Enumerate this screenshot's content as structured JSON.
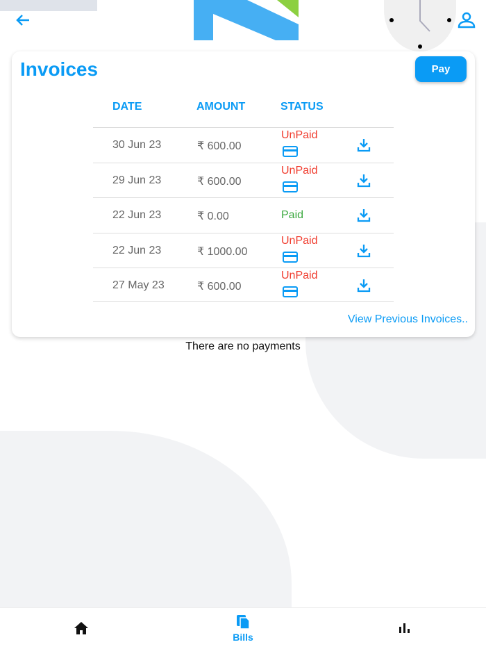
{
  "header": {
    "back": "arrow-left-icon",
    "profile": "user-icon"
  },
  "invoices": {
    "title": "Invoices",
    "pay_label": "Pay",
    "columns": [
      "DATE",
      "AMOUNT",
      "STATUS"
    ],
    "rows": [
      {
        "date": "30 Jun 23",
        "amount": "₹ 600.00",
        "status": "UnPaid"
      },
      {
        "date": "29 Jun 23",
        "amount": "₹ 600.00",
        "status": "UnPaid"
      },
      {
        "date": "22 Jun 23",
        "amount": "₹ 0.00",
        "status": "Paid"
      },
      {
        "date": "22 Jun 23",
        "amount": "₹ 1000.00",
        "status": "UnPaid"
      },
      {
        "date": "27 May 23",
        "amount": "₹ 600.00",
        "status": "UnPaid"
      }
    ],
    "view_previous": "View Previous Invoices.."
  },
  "payments": {
    "empty": "There are no payments"
  },
  "nav": {
    "bills": "Bills"
  },
  "colors": {
    "accent": "#0a9bf5",
    "unpaid": "#f03c2e",
    "paid": "#3aa83e"
  }
}
